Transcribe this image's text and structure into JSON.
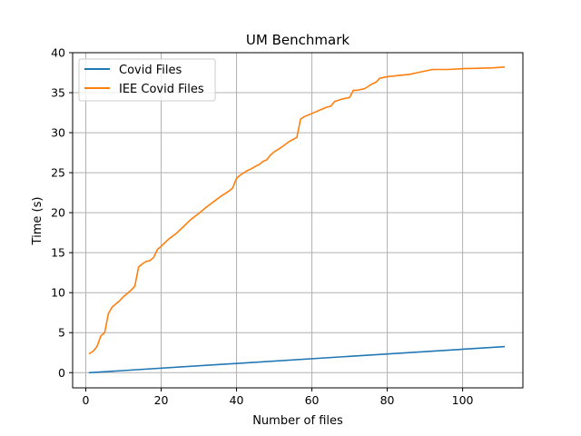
{
  "chart_data": {
    "type": "line",
    "title": "UM Benchmark",
    "xlabel": "Number of files",
    "ylabel": "Time (s)",
    "xlim": [
      -3.5,
      116
    ],
    "ylim": [
      -1.9,
      40
    ],
    "x_ticks": [
      0,
      20,
      40,
      60,
      80,
      100
    ],
    "y_ticks": [
      0,
      5,
      10,
      15,
      20,
      25,
      30,
      35,
      40
    ],
    "grid": true,
    "legend_position": "top-left",
    "series": [
      {
        "name": "Covid Files",
        "color": "#1f77b4",
        "points": [
          [
            1,
            0.0
          ],
          [
            111,
            3.25
          ]
        ]
      },
      {
        "name": "IEE Covid Files",
        "color": "#ff7f0e",
        "points": [
          [
            1,
            2.4
          ],
          [
            2,
            2.7
          ],
          [
            3,
            3.3
          ],
          [
            4,
            4.6
          ],
          [
            5,
            5.0
          ],
          [
            6,
            7.4
          ],
          [
            7,
            8.2
          ],
          [
            8,
            8.6
          ],
          [
            9,
            9.0
          ],
          [
            10,
            9.5
          ],
          [
            11,
            9.9
          ],
          [
            12,
            10.3
          ],
          [
            13,
            10.8
          ],
          [
            14,
            13.2
          ],
          [
            15,
            13.6
          ],
          [
            16,
            13.9
          ],
          [
            17,
            14.0
          ],
          [
            18,
            14.4
          ],
          [
            19,
            15.4
          ],
          [
            20,
            15.8
          ],
          [
            22,
            16.7
          ],
          [
            24,
            17.4
          ],
          [
            26,
            18.3
          ],
          [
            28,
            19.2
          ],
          [
            30,
            19.9
          ],
          [
            32,
            20.7
          ],
          [
            34,
            21.4
          ],
          [
            36,
            22.1
          ],
          [
            38,
            22.7
          ],
          [
            39,
            23.1
          ],
          [
            40,
            24.3
          ],
          [
            41,
            24.7
          ],
          [
            42,
            25.0
          ],
          [
            43,
            25.3
          ],
          [
            44,
            25.5
          ],
          [
            45,
            25.8
          ],
          [
            46,
            26.0
          ],
          [
            47,
            26.4
          ],
          [
            48,
            26.6
          ],
          [
            49,
            27.2
          ],
          [
            50,
            27.6
          ],
          [
            52,
            28.2
          ],
          [
            54,
            28.9
          ],
          [
            56,
            29.4
          ],
          [
            57,
            31.7
          ],
          [
            58,
            32.0
          ],
          [
            60,
            32.4
          ],
          [
            62,
            32.8
          ],
          [
            64,
            33.2
          ],
          [
            65,
            33.3
          ],
          [
            66,
            33.9
          ],
          [
            68,
            34.2
          ],
          [
            70,
            34.4
          ],
          [
            71,
            35.3
          ],
          [
            72,
            35.3
          ],
          [
            74,
            35.5
          ],
          [
            75,
            35.8
          ],
          [
            76,
            36.1
          ],
          [
            77,
            36.3
          ],
          [
            78,
            36.8
          ],
          [
            80,
            37.0
          ],
          [
            82,
            37.1
          ],
          [
            84,
            37.2
          ],
          [
            86,
            37.3
          ],
          [
            88,
            37.5
          ],
          [
            90,
            37.7
          ],
          [
            92,
            37.9
          ],
          [
            96,
            37.9
          ],
          [
            100,
            38.0
          ],
          [
            104,
            38.05
          ],
          [
            108,
            38.1
          ],
          [
            111,
            38.2
          ]
        ]
      }
    ]
  }
}
